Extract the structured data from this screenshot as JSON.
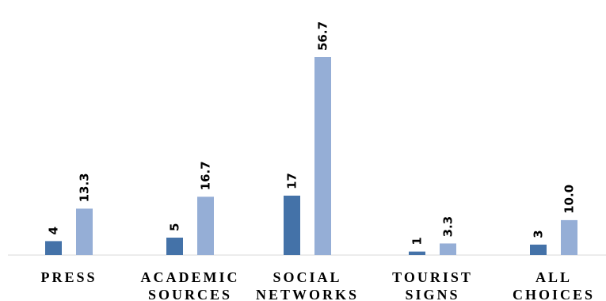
{
  "chart_data": {
    "type": "bar",
    "categories": [
      [
        "PRESS"
      ],
      [
        "ACADEMIC",
        "SOURCES"
      ],
      [
        "SOCIAL",
        "NETWORKS"
      ],
      [
        "TOURIST",
        "SIGNS"
      ],
      [
        "ALL",
        "CHOICES"
      ]
    ],
    "series": [
      {
        "values": [
          4,
          5,
          17,
          1,
          3
        ],
        "labels": [
          "4",
          "5",
          "17",
          "1",
          "3"
        ],
        "color": "#4472A8"
      },
      {
        "values": [
          13.3,
          16.7,
          56.7,
          3.3,
          10.0
        ],
        "labels": [
          "13.3",
          "16.7",
          "56.7",
          "3.3",
          "10.0"
        ],
        "color": "#95AED6"
      }
    ],
    "title": "",
    "xlabel": "",
    "ylabel": "",
    "ylim": [
      0,
      56.7
    ],
    "grid": false,
    "legend": "none",
    "axis_color": "#D9D9D9"
  }
}
